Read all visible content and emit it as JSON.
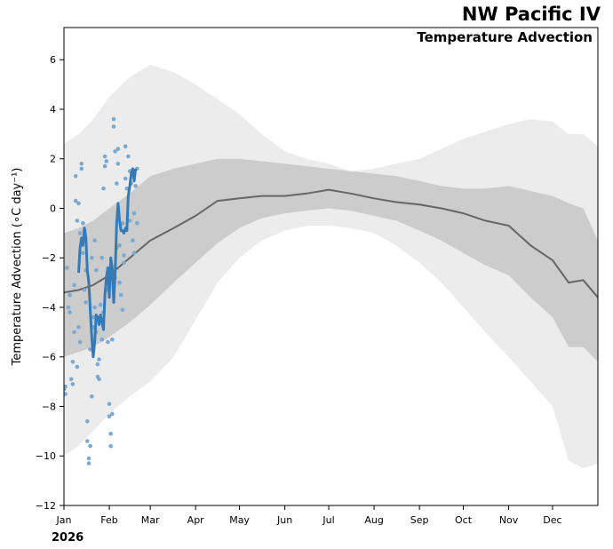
{
  "chart_data": {
    "type": "line",
    "title": "NW Pacific IV",
    "subtitle": "Temperature Advection",
    "ylabel": "Temperature Advection (∘C day⁻¹)",
    "xlabel": "",
    "year_label": "2026",
    "ylim": [
      -12,
      7.3
    ],
    "y_ticks": [
      -12,
      -10,
      -8,
      -6,
      -4,
      -2,
      0,
      2,
      4,
      6
    ],
    "x_range_days": [
      0,
      365
    ],
    "x_ticks": [
      {
        "label": "Jan",
        "day": 0
      },
      {
        "label": "Feb",
        "day": 31
      },
      {
        "label": "Mar",
        "day": 59
      },
      {
        "label": "Apr",
        "day": 90
      },
      {
        "label": "May",
        "day": 120
      },
      {
        "label": "Jun",
        "day": 151
      },
      {
        "label": "Jul",
        "day": 181
      },
      {
        "label": "Aug",
        "day": 212
      },
      {
        "label": "Sep",
        "day": 243
      },
      {
        "label": "Oct",
        "day": 273
      },
      {
        "label": "Nov",
        "day": 304
      },
      {
        "label": "Dec",
        "day": 334
      }
    ],
    "colors": {
      "outer_band": "#ececec",
      "inner_band": "#cccccc",
      "mean_line": "#666666",
      "current_line": "#3579b5",
      "points": "#7aaad2"
    },
    "climatology_days": [
      0,
      10,
      20,
      31,
      45,
      59,
      75,
      90,
      105,
      120,
      135,
      151,
      166,
      181,
      196,
      212,
      227,
      243,
      258,
      273,
      288,
      304,
      319,
      334,
      345,
      355,
      365
    ],
    "climatology_mean": [
      -3.4,
      -3.3,
      -3.1,
      -2.7,
      -2.0,
      -1.3,
      -0.8,
      -0.3,
      0.3,
      0.4,
      0.5,
      0.5,
      0.6,
      0.75,
      0.6,
      0.4,
      0.25,
      0.15,
      0.0,
      -0.2,
      -0.5,
      -0.7,
      -1.5,
      -2.1,
      -3.0,
      -2.9,
      -3.6
    ],
    "inner_band_upper": [
      -1.0,
      -0.8,
      -0.5,
      0.0,
      0.6,
      1.3,
      1.6,
      1.8,
      2.0,
      2.0,
      1.9,
      1.8,
      1.7,
      1.6,
      1.5,
      1.4,
      1.3,
      1.1,
      0.9,
      0.8,
      0.8,
      0.9,
      0.7,
      0.5,
      0.2,
      0.0,
      -1.3
    ],
    "inner_band_lower": [
      -6.0,
      -5.8,
      -5.6,
      -5.2,
      -4.6,
      -3.9,
      -3.0,
      -2.2,
      -1.4,
      -0.8,
      -0.4,
      -0.2,
      -0.1,
      0.0,
      -0.1,
      -0.3,
      -0.5,
      -0.9,
      -1.3,
      -1.8,
      -2.3,
      -2.7,
      -3.6,
      -4.4,
      -5.6,
      -5.6,
      -6.2
    ],
    "outer_band_upper": [
      2.6,
      3.0,
      3.6,
      4.5,
      5.3,
      5.8,
      5.5,
      5.0,
      4.4,
      3.8,
      3.0,
      2.3,
      2.0,
      1.8,
      1.5,
      1.6,
      1.8,
      2.0,
      2.4,
      2.8,
      3.1,
      3.4,
      3.6,
      3.5,
      3.0,
      3.0,
      2.5
    ],
    "outer_band_lower": [
      -10.0,
      -9.6,
      -9.0,
      -8.3,
      -7.6,
      -7.0,
      -6.0,
      -4.5,
      -3.0,
      -2.0,
      -1.3,
      -0.9,
      -0.7,
      -0.7,
      -0.8,
      -1.0,
      -1.5,
      -2.2,
      -3.0,
      -4.0,
      -5.0,
      -6.0,
      -7.0,
      -8.0,
      -10.2,
      -10.5,
      -10.3
    ],
    "current_series": {
      "name": "2026",
      "days": [
        10,
        11,
        12,
        13,
        14,
        15,
        16,
        17,
        18,
        19,
        20,
        21,
        22,
        23,
        24,
        25,
        26,
        27,
        28,
        29,
        30,
        31,
        32,
        33,
        34,
        35,
        36,
        37,
        38,
        39,
        40,
        41,
        42,
        43,
        44,
        45,
        46,
        47,
        48,
        49,
        50,
        51,
        52,
        53,
        54,
        55
      ],
      "values": [
        -2.6,
        -1.6,
        -1.2,
        -1.5,
        -0.8,
        -1.2,
        -2.5,
        -3.0,
        -4.1,
        -5.2,
        -6.0,
        -5.4,
        -4.3,
        -4.4,
        -4.7,
        -4.3,
        -4.6,
        -4.9,
        -3.5,
        -2.8,
        -2.4,
        -3.6,
        -2.0,
        -2.4,
        -3.8,
        -2.6,
        -0.6,
        0.2,
        -0.5,
        -0.9,
        -0.9,
        -1.0,
        -0.8,
        -0.9,
        0.5,
        0.9,
        1.4,
        1.6,
        1.1,
        1.6,
        null,
        null,
        null,
        null,
        null,
        null
      ]
    },
    "scatter_points": [
      [
        0,
        -7.3
      ],
      [
        1,
        -7.5
      ],
      [
        1,
        -7.2
      ],
      [
        2,
        -2.4
      ],
      [
        3,
        -4.0
      ],
      [
        4,
        -3.5
      ],
      [
        4,
        -4.2
      ],
      [
        5,
        -6.9
      ],
      [
        6,
        -6.2
      ],
      [
        6,
        -7.1
      ],
      [
        7,
        -5.0
      ],
      [
        8,
        1.3
      ],
      [
        8,
        0.3
      ],
      [
        9,
        -0.5
      ],
      [
        9,
        -6.4
      ],
      [
        10,
        -4.8
      ],
      [
        10,
        0.2
      ],
      [
        11,
        -1.0
      ],
      [
        12,
        1.8
      ],
      [
        12,
        1.6
      ],
      [
        13,
        -0.6
      ],
      [
        13,
        -1.8
      ],
      [
        14,
        -0.9
      ],
      [
        15,
        -2.5
      ],
      [
        15,
        -3.8
      ],
      [
        16,
        -8.6
      ],
      [
        16,
        -9.4
      ],
      [
        17,
        -10.3
      ],
      [
        17,
        -10.1
      ],
      [
        18,
        -9.6
      ],
      [
        18,
        -5.7
      ],
      [
        19,
        -7.6
      ],
      [
        20,
        -4.8
      ],
      [
        20,
        -4.4
      ],
      [
        21,
        -4.0
      ],
      [
        22,
        -5.0
      ],
      [
        22,
        -2.5
      ],
      [
        23,
        -6.3
      ],
      [
        23,
        -6.8
      ],
      [
        24,
        -6.9
      ],
      [
        24,
        -6.1
      ],
      [
        25,
        -3.9
      ],
      [
        26,
        -5.3
      ],
      [
        27,
        -4.2
      ],
      [
        27,
        0.8
      ],
      [
        28,
        1.7
      ],
      [
        28,
        2.1
      ],
      [
        29,
        1.9
      ],
      [
        30,
        -5.4
      ],
      [
        31,
        -8.4
      ],
      [
        31,
        -7.9
      ],
      [
        32,
        -9.6
      ],
      [
        32,
        -9.1
      ],
      [
        33,
        -8.3
      ],
      [
        33,
        -5.3
      ],
      [
        34,
        3.3
      ],
      [
        34,
        3.6
      ],
      [
        35,
        2.3
      ],
      [
        36,
        1.0
      ],
      [
        36,
        -1.6
      ],
      [
        37,
        2.4
      ],
      [
        37,
        1.8
      ],
      [
        38,
        -3.0
      ],
      [
        38,
        -1.5
      ],
      [
        39,
        -3.5
      ],
      [
        40,
        -4.1
      ],
      [
        40,
        -0.6
      ],
      [
        41,
        -2.2
      ],
      [
        42,
        2.5
      ],
      [
        42,
        1.2
      ],
      [
        43,
        0.8
      ],
      [
        44,
        2.1
      ],
      [
        45,
        1.5
      ],
      [
        46,
        1.0
      ],
      [
        47,
        -1.3
      ],
      [
        48,
        -0.2
      ],
      [
        48,
        -1.8
      ],
      [
        49,
        0.9
      ],
      [
        50,
        1.6
      ],
      [
        50,
        -0.6
      ],
      [
        26,
        -2.0
      ],
      [
        29,
        -3.3
      ],
      [
        35,
        -2.8
      ],
      [
        41,
        -1.9
      ],
      [
        45,
        -0.5
      ],
      [
        21,
        -1.3
      ],
      [
        19,
        -2.0
      ],
      [
        14,
        -3.3
      ],
      [
        11,
        -5.4
      ],
      [
        7,
        -3.1
      ]
    ]
  }
}
